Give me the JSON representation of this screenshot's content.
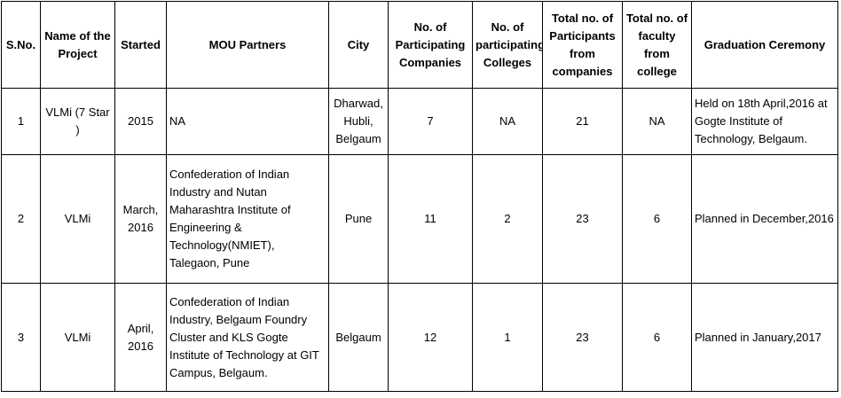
{
  "table": {
    "header": [
      "S.No.",
      "Name of the Project",
      "Started",
      "MOU Partners",
      "City",
      "No. of Participating Companies",
      "No. of participating Colleges",
      "Total no. of Participants from companies",
      "Total no. of faculty from college",
      "Graduation Ceremony"
    ],
    "rows": [
      [
        "1",
        "VLMi (7 Star )",
        "2015",
        "NA",
        "Dharwad, Hubli, Belgaum",
        "7",
        "NA",
        "21",
        "NA",
        "Held on 18th April,2016 at Gogte Institute of Technology, Belgaum."
      ],
      [
        "2",
        "VLMi",
        "March, 2016",
        "Confederation of Indian Industry and Nutan Maharashtra Institute of Engineering & Technology(NMIET), Talegaon, Pune",
        "Pune",
        "11",
        "2",
        "23",
        "6",
        "Planned in December,2016"
      ],
      [
        "3",
        "VLMi",
        "April, 2016",
        "Confederation of Indian Industry, Belgaum Foundry Cluster and KLS Gogte Institute of Technology at GIT Campus, Belgaum.",
        "Belgaum",
        "12",
        "1",
        "23",
        "6",
        "Planned in January,2017"
      ]
    ]
  }
}
